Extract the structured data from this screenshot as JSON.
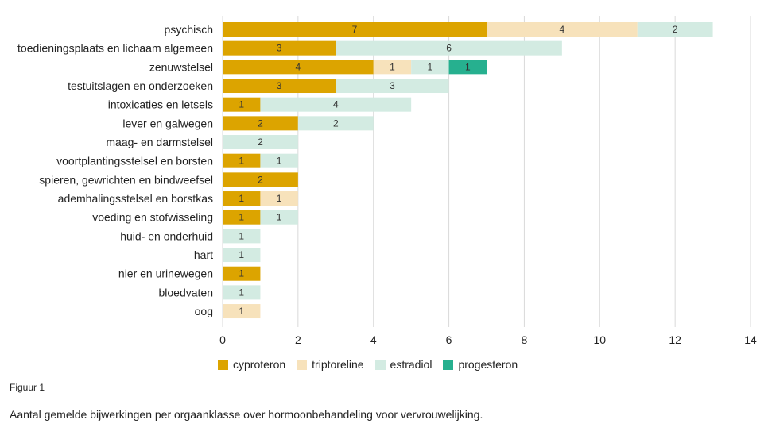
{
  "chart_data": {
    "type": "bar",
    "orientation": "horizontal",
    "stacked": true,
    "categories": [
      "psychisch",
      "toedieningsplaats en lichaam algemeen",
      "zenuwstelsel",
      "testuitslagen en onderzoeken",
      "intoxicaties en letsels",
      "lever en galwegen",
      "maag- en darmstelsel",
      "voortplantingsstelsel en borsten",
      "spieren, gewrichten en bindweefsel",
      "ademhalingsstelsel en borstkas",
      "voeding en stofwisseling",
      "huid- en onderhuid",
      "hart",
      "nier en urinewegen",
      "bloedvaten",
      "oog"
    ],
    "series": [
      {
        "name": "cyproteron",
        "color": "#dca400",
        "values": [
          7,
          3,
          4,
          3,
          1,
          2,
          0,
          1,
          2,
          1,
          1,
          0,
          0,
          1,
          0,
          0
        ]
      },
      {
        "name": "triptoreline",
        "color": "#f7e2bb",
        "values": [
          4,
          0,
          1,
          0,
          0,
          0,
          0,
          0,
          0,
          1,
          0,
          0,
          0,
          0,
          0,
          1
        ]
      },
      {
        "name": "estradiol",
        "color": "#d3ebe2",
        "values": [
          2,
          6,
          1,
          3,
          4,
          2,
          2,
          1,
          0,
          0,
          1,
          1,
          1,
          0,
          1,
          0
        ]
      },
      {
        "name": "progesteron",
        "color": "#26b08f",
        "values": [
          0,
          0,
          1,
          0,
          0,
          0,
          0,
          0,
          0,
          0,
          0,
          0,
          0,
          0,
          0,
          0
        ]
      }
    ],
    "xlim": [
      0,
      14
    ],
    "xticks": [
      0,
      2,
      4,
      6,
      8,
      10,
      12,
      14
    ],
    "grid": "vertical",
    "legend_position": "bottom"
  },
  "figure_label": "Figuur 1",
  "caption": "Aantal gemelde bijwerkingen per orgaanklasse over hormoonbehandeling voor vervrouwelijking."
}
